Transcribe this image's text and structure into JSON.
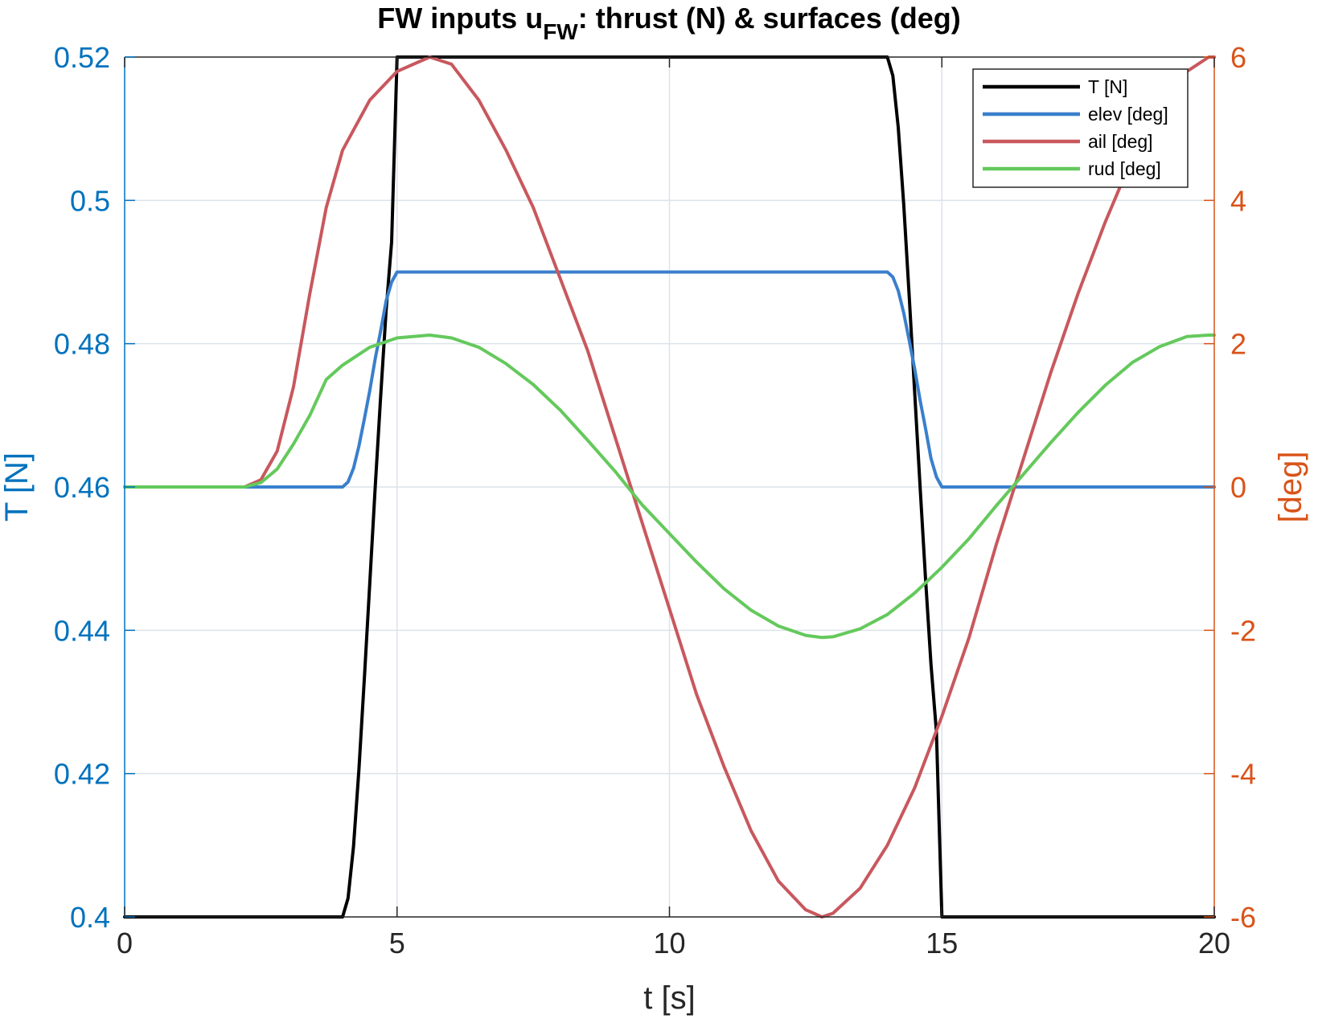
{
  "chart_data": {
    "type": "line",
    "title": "FW inputs u",
    "title_sub": "FW",
    "title_rest": ": thrust (N) & surfaces (deg)",
    "xlabel": "t [s]",
    "ylabel_left": "T [N]",
    "ylabel_right": "[deg]",
    "xlim": [
      0,
      20
    ],
    "ylim_left": [
      0.4,
      0.52
    ],
    "ylim_right": [
      -6,
      6
    ],
    "xticks": [
      0,
      5,
      10,
      15,
      20
    ],
    "xtick_labels": [
      "0",
      "5",
      "10",
      "15",
      "20"
    ],
    "yticks_left": [
      0.4,
      0.42,
      0.44,
      0.46,
      0.48,
      0.5,
      0.52
    ],
    "ytick_labels_left": [
      "0.4",
      "0.42",
      "0.44",
      "0.46",
      "0.48",
      "0.5",
      "0.52"
    ],
    "yticks_right": [
      -6,
      -4,
      -2,
      0,
      2,
      4,
      6
    ],
    "ytick_labels_right": [
      "-6",
      "-4",
      "-2",
      "0",
      "2",
      "4",
      "6"
    ],
    "grid": true,
    "legend_position": "top-right",
    "colors": {
      "left_axis": "#0072BD",
      "right_axis": "#D95319",
      "grid": "#DCE3EA",
      "frame": "#262626"
    },
    "series": [
      {
        "name": "T [N]",
        "axis": "left",
        "color": "#000000",
        "x": [
          0,
          4,
          4.1,
          4.2,
          4.3,
          4.4,
          4.5,
          4.6,
          4.7,
          4.8,
          4.9,
          5,
          14,
          14.1,
          14.2,
          14.3,
          14.4,
          14.5,
          14.6,
          14.7,
          14.8,
          14.9,
          15,
          20
        ],
        "y": [
          0.4,
          0.4,
          0.4026,
          0.4098,
          0.4205,
          0.4333,
          0.4467,
          0.46,
          0.4727,
          0.4847,
          0.4942,
          0.52,
          0.52,
          0.5174,
          0.5102,
          0.4995,
          0.4867,
          0.4733,
          0.46,
          0.4473,
          0.4353,
          0.4258,
          0.4,
          0.4
        ]
      },
      {
        "name": "elev [deg]",
        "axis": "right",
        "color": "#3A7FCC",
        "x": [
          0,
          4,
          4.1,
          4.2,
          4.3,
          4.4,
          4.5,
          4.6,
          4.7,
          4.8,
          4.9,
          5,
          14,
          14.1,
          14.2,
          14.3,
          14.4,
          14.5,
          14.6,
          14.7,
          14.8,
          14.9,
          15,
          20
        ],
        "y": [
          0,
          0,
          0.07,
          0.26,
          0.57,
          0.95,
          1.35,
          1.79,
          2.18,
          2.6,
          2.86,
          3,
          3,
          2.93,
          2.74,
          2.43,
          2.05,
          1.65,
          1.21,
          0.82,
          0.4,
          0.14,
          0,
          0
        ]
      },
      {
        "name": "ail [deg]",
        "axis": "right",
        "color": "#C8585E",
        "x": [
          0,
          2.2,
          2.5,
          2.8,
          3.1,
          3.4,
          3.7,
          4.0,
          4.5,
          5.0,
          5.6,
          6.0,
          6.5,
          7.0,
          7.5,
          8.0,
          8.5,
          9.0,
          9.5,
          10.0,
          10.5,
          11.0,
          11.5,
          12.0,
          12.5,
          12.8,
          13.0,
          13.5,
          14.0,
          14.5,
          15.0,
          15.5,
          16.0,
          16.5,
          17.0,
          17.5,
          18.0,
          18.5,
          19.0,
          19.5,
          19.9,
          20
        ],
        "y": [
          0,
          0,
          0.1,
          0.5,
          1.4,
          2.7,
          3.9,
          4.7,
          5.4,
          5.8,
          6.0,
          5.9,
          5.4,
          4.7,
          3.9,
          2.9,
          1.9,
          0.7,
          -0.5,
          -1.7,
          -2.9,
          -3.9,
          -4.8,
          -5.5,
          -5.9,
          -6.0,
          -5.95,
          -5.6,
          -5.0,
          -4.2,
          -3.2,
          -2.1,
          -0.8,
          0.4,
          1.6,
          2.7,
          3.7,
          4.6,
          5.3,
          5.8,
          6.0,
          6.0
        ]
      },
      {
        "name": "rud [deg]",
        "axis": "right",
        "color": "#64C95C",
        "x": [
          0,
          2.2,
          2.5,
          2.8,
          3.1,
          3.4,
          3.7,
          4.0,
          4.5,
          5.0,
          5.6,
          6.0,
          6.5,
          7.0,
          7.5,
          8.0,
          8.5,
          9.0,
          9.5,
          10.0,
          10.5,
          11.0,
          11.5,
          12.0,
          12.5,
          12.8,
          13.0,
          13.5,
          14.0,
          14.5,
          15.0,
          15.5,
          16.0,
          16.5,
          17.0,
          17.5,
          18.0,
          18.5,
          19.0,
          19.5,
          19.9,
          20
        ],
        "y": [
          0,
          0,
          0.06,
          0.25,
          0.6,
          1.0,
          1.5,
          1.7,
          1.95,
          2.08,
          2.12,
          2.08,
          1.95,
          1.72,
          1.43,
          1.07,
          0.65,
          0.22,
          -0.25,
          -0.65,
          -1.05,
          -1.42,
          -1.72,
          -1.94,
          -2.07,
          -2.1,
          -2.09,
          -1.98,
          -1.78,
          -1.48,
          -1.12,
          -0.72,
          -0.26,
          0.18,
          0.62,
          1.04,
          1.42,
          1.74,
          1.96,
          2.1,
          2.12,
          2.12
        ]
      }
    ]
  }
}
